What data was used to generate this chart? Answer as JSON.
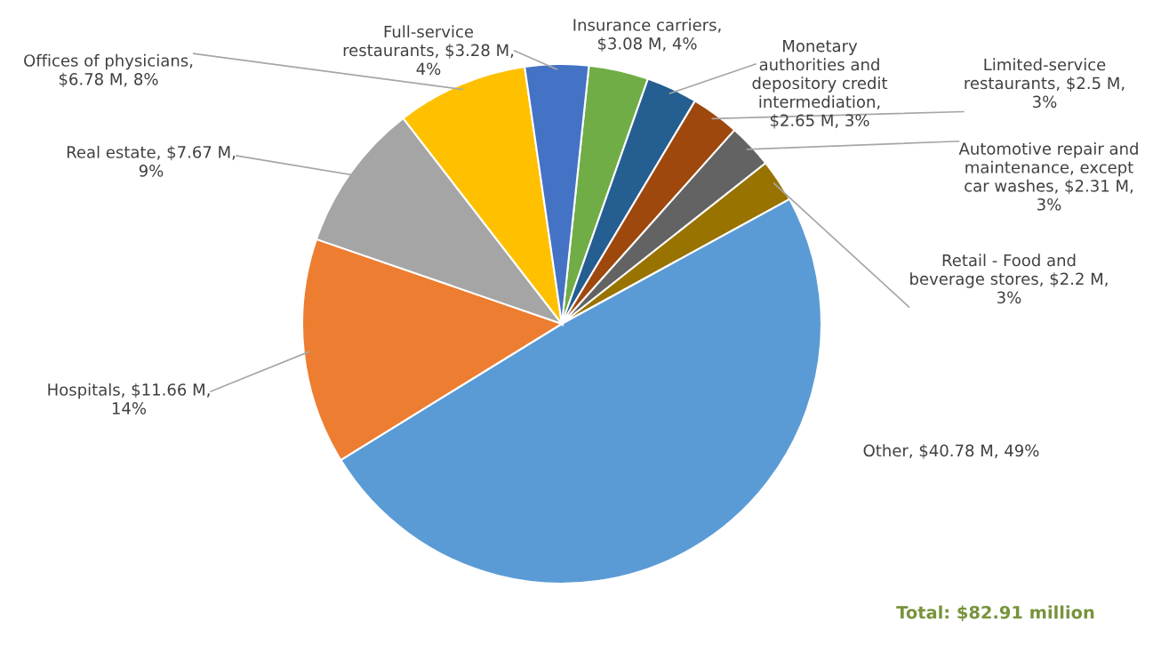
{
  "chart_data": {
    "type": "pie",
    "categories": [
      "Insurance carriers, $3.08 M, 4%",
      "Monetary authorities and depository credit intermediation, $2.65 M, 3%",
      "Limited-service restaurants, $2.5 M, 3%",
      "Automotive repair and maintenance, except car washes, $2.31 M, 3%",
      "Retail - Food and beverage stores, $2.2 M, 3%",
      "Other, $40.78 M, 49%",
      "Hospitals, $11.66 M, 14%",
      "Real estate, $7.67 M, 9%",
      "Offices of physicians, $6.78 M, 8%",
      "Full-service restaurants, $3.28 M, 4%"
    ],
    "values": [
      3.08,
      2.65,
      2.5,
      2.31,
      2.2,
      40.78,
      11.66,
      7.67,
      6.78,
      3.28
    ],
    "colors": [
      "#70ad47",
      "#255e91",
      "#9e480e",
      "#636363",
      "#997300",
      "#5b9bd5",
      "#ed7d31",
      "#a5a5a5",
      "#ffc000",
      "#4472c4"
    ],
    "annotations": [
      "Total: $82.91 million"
    ]
  }
}
